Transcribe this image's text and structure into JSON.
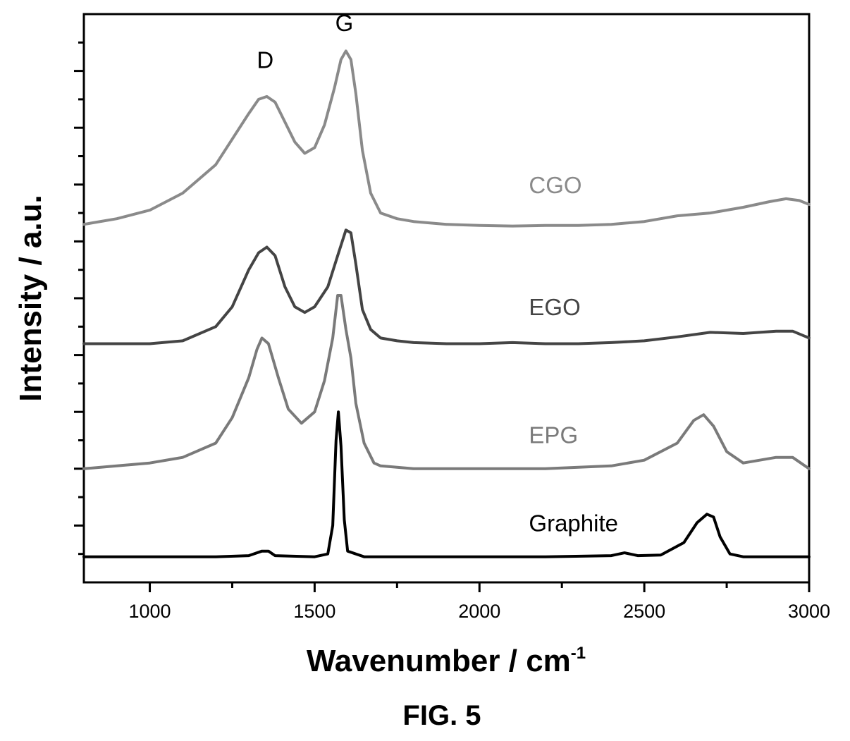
{
  "chart_data": {
    "type": "line",
    "xlabel": "Wavenumber / cm",
    "xlabel_superscript": "-1",
    "ylabel": "Intensity / a.u.",
    "xlim": [
      800,
      3000
    ],
    "ylim": [
      0,
      10
    ],
    "x_ticks": [
      1000,
      1500,
      2000,
      2500,
      3000
    ],
    "x_tick_labels": [
      "1000",
      "1500",
      "2000",
      "2500",
      "3000"
    ],
    "y_tick_labels_shown": false,
    "grid": false,
    "legend": "none (series labelled inline)",
    "annotations": [
      {
        "text": "D",
        "x": 1350,
        "y": 9.05
      },
      {
        "text": "G",
        "x": 1590,
        "y": 9.7
      }
    ],
    "caption": "FIG. 5",
    "series": [
      {
        "name": "CGO",
        "color": "#8a8a8a",
        "label_at": {
          "x": 2150,
          "y": 6.85
        },
        "points": [
          [
            800,
            6.3
          ],
          [
            900,
            6.4
          ],
          [
            1000,
            6.55
          ],
          [
            1100,
            6.85
          ],
          [
            1200,
            7.35
          ],
          [
            1250,
            7.8
          ],
          [
            1300,
            8.25
          ],
          [
            1330,
            8.5
          ],
          [
            1355,
            8.55
          ],
          [
            1380,
            8.45
          ],
          [
            1410,
            8.1
          ],
          [
            1440,
            7.75
          ],
          [
            1470,
            7.55
          ],
          [
            1500,
            7.65
          ],
          [
            1530,
            8.05
          ],
          [
            1560,
            8.7
          ],
          [
            1580,
            9.2
          ],
          [
            1595,
            9.35
          ],
          [
            1610,
            9.2
          ],
          [
            1625,
            8.6
          ],
          [
            1645,
            7.6
          ],
          [
            1670,
            6.85
          ],
          [
            1700,
            6.5
          ],
          [
            1750,
            6.4
          ],
          [
            1800,
            6.35
          ],
          [
            1900,
            6.3
          ],
          [
            2000,
            6.28
          ],
          [
            2100,
            6.27
          ],
          [
            2200,
            6.28
          ],
          [
            2300,
            6.28
          ],
          [
            2400,
            6.3
          ],
          [
            2500,
            6.35
          ],
          [
            2600,
            6.45
          ],
          [
            2700,
            6.5
          ],
          [
            2800,
            6.6
          ],
          [
            2880,
            6.7
          ],
          [
            2930,
            6.75
          ],
          [
            2970,
            6.72
          ],
          [
            3000,
            6.65
          ]
        ]
      },
      {
        "name": "EGO",
        "color": "#444444",
        "label_at": {
          "x": 2150,
          "y": 4.7
        },
        "points": [
          [
            800,
            4.2
          ],
          [
            900,
            4.2
          ],
          [
            1000,
            4.2
          ],
          [
            1100,
            4.25
          ],
          [
            1200,
            4.5
          ],
          [
            1250,
            4.85
          ],
          [
            1300,
            5.5
          ],
          [
            1330,
            5.8
          ],
          [
            1355,
            5.9
          ],
          [
            1380,
            5.75
          ],
          [
            1410,
            5.2
          ],
          [
            1440,
            4.85
          ],
          [
            1470,
            4.75
          ],
          [
            1500,
            4.85
          ],
          [
            1540,
            5.2
          ],
          [
            1570,
            5.75
          ],
          [
            1595,
            6.2
          ],
          [
            1610,
            6.15
          ],
          [
            1625,
            5.6
          ],
          [
            1645,
            4.8
          ],
          [
            1670,
            4.45
          ],
          [
            1700,
            4.3
          ],
          [
            1750,
            4.25
          ],
          [
            1800,
            4.22
          ],
          [
            1900,
            4.2
          ],
          [
            2000,
            4.2
          ],
          [
            2100,
            4.22
          ],
          [
            2200,
            4.2
          ],
          [
            2300,
            4.2
          ],
          [
            2400,
            4.22
          ],
          [
            2500,
            4.25
          ],
          [
            2600,
            4.32
          ],
          [
            2700,
            4.4
          ],
          [
            2800,
            4.38
          ],
          [
            2900,
            4.42
          ],
          [
            2950,
            4.42
          ],
          [
            3000,
            4.3
          ]
        ]
      },
      {
        "name": "EPG",
        "color": "#7a7a7a",
        "label_at": {
          "x": 2150,
          "y": 2.45
        },
        "points": [
          [
            800,
            2.0
          ],
          [
            900,
            2.05
          ],
          [
            1000,
            2.1
          ],
          [
            1100,
            2.2
          ],
          [
            1200,
            2.45
          ],
          [
            1250,
            2.9
          ],
          [
            1300,
            3.6
          ],
          [
            1325,
            4.1
          ],
          [
            1340,
            4.3
          ],
          [
            1360,
            4.2
          ],
          [
            1390,
            3.6
          ],
          [
            1420,
            3.05
          ],
          [
            1460,
            2.8
          ],
          [
            1500,
            3.0
          ],
          [
            1530,
            3.55
          ],
          [
            1555,
            4.3
          ],
          [
            1570,
            5.05
          ],
          [
            1580,
            5.05
          ],
          [
            1595,
            4.45
          ],
          [
            1610,
            3.95
          ],
          [
            1625,
            3.15
          ],
          [
            1650,
            2.45
          ],
          [
            1680,
            2.1
          ],
          [
            1700,
            2.05
          ],
          [
            1800,
            2.0
          ],
          [
            1900,
            2.0
          ],
          [
            2000,
            2.0
          ],
          [
            2200,
            2.0
          ],
          [
            2400,
            2.05
          ],
          [
            2500,
            2.15
          ],
          [
            2600,
            2.45
          ],
          [
            2650,
            2.85
          ],
          [
            2680,
            2.95
          ],
          [
            2710,
            2.75
          ],
          [
            2750,
            2.3
          ],
          [
            2800,
            2.1
          ],
          [
            2900,
            2.2
          ],
          [
            2950,
            2.2
          ],
          [
            3000,
            2.0
          ]
        ]
      },
      {
        "name": "Graphite",
        "color": "#000000",
        "label_at": {
          "x": 2150,
          "y": 0.9
        },
        "points": [
          [
            800,
            0.45
          ],
          [
            900,
            0.45
          ],
          [
            1000,
            0.45
          ],
          [
            1100,
            0.45
          ],
          [
            1200,
            0.45
          ],
          [
            1300,
            0.47
          ],
          [
            1340,
            0.55
          ],
          [
            1360,
            0.55
          ],
          [
            1380,
            0.47
          ],
          [
            1500,
            0.45
          ],
          [
            1540,
            0.5
          ],
          [
            1555,
            1.0
          ],
          [
            1565,
            2.5
          ],
          [
            1572,
            3.0
          ],
          [
            1580,
            2.4
          ],
          [
            1590,
            1.1
          ],
          [
            1600,
            0.55
          ],
          [
            1650,
            0.45
          ],
          [
            1800,
            0.45
          ],
          [
            2000,
            0.45
          ],
          [
            2200,
            0.45
          ],
          [
            2400,
            0.47
          ],
          [
            2440,
            0.52
          ],
          [
            2480,
            0.47
          ],
          [
            2550,
            0.48
          ],
          [
            2620,
            0.7
          ],
          [
            2660,
            1.05
          ],
          [
            2690,
            1.2
          ],
          [
            2710,
            1.15
          ],
          [
            2730,
            0.8
          ],
          [
            2760,
            0.5
          ],
          [
            2800,
            0.45
          ],
          [
            3000,
            0.45
          ]
        ]
      }
    ]
  }
}
